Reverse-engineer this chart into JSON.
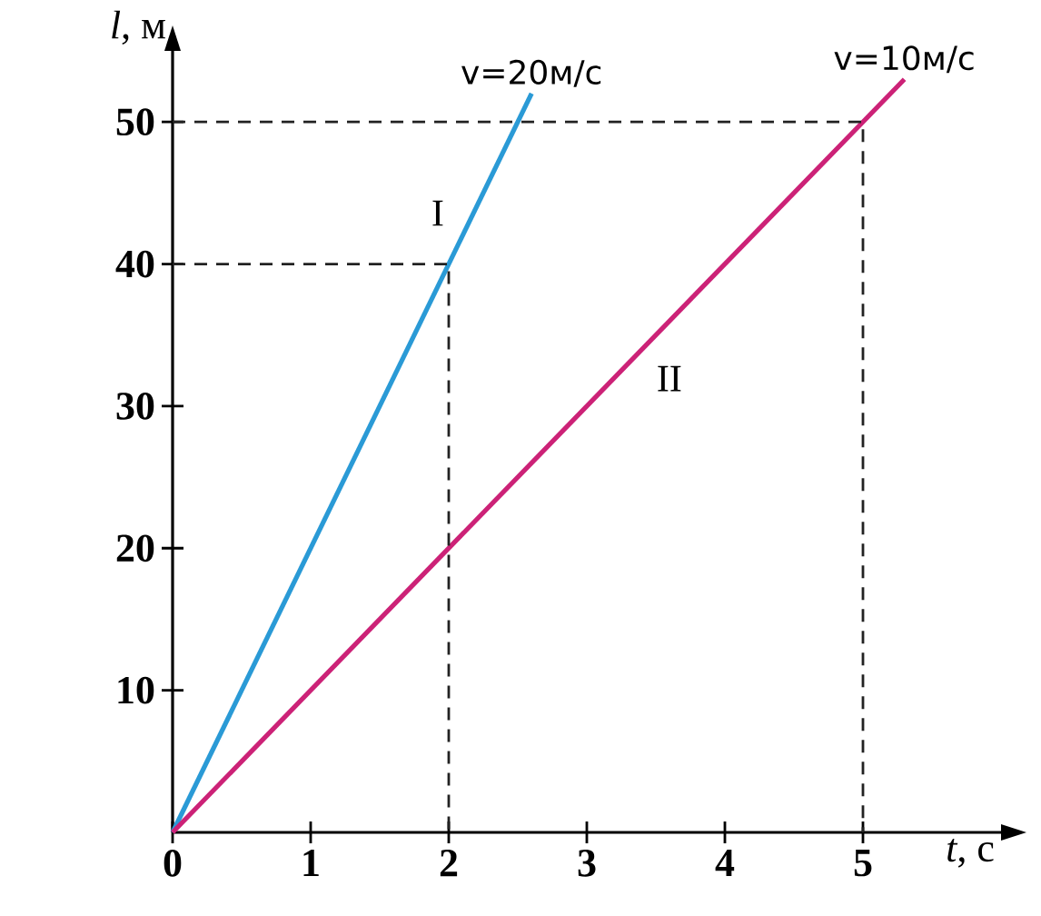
{
  "chart_data": {
    "type": "line",
    "xlabel": "*t*, с",
    "ylabel": "*l*, м",
    "xlim": [
      0,
      6
    ],
    "ylim": [
      0,
      55
    ],
    "xticks": [
      0,
      1,
      2,
      3,
      4,
      5
    ],
    "yticks": [
      10,
      20,
      30,
      40,
      50
    ],
    "series": [
      {
        "name": "I",
        "color": "#2a9ad6",
        "x": [
          0,
          2.6
        ],
        "values": [
          0,
          52
        ],
        "line_style": "solid"
      },
      {
        "name": "II",
        "color": "#cc2277",
        "x": [
          0,
          5.3
        ],
        "values": [
          0,
          53
        ],
        "line_style": "solid"
      },
      {
        "color": "#222222",
        "x": [
          0,
          2,
          2
        ],
        "values": [
          40,
          40,
          0
        ],
        "line_style": "dashed"
      },
      {
        "color": "#222222",
        "x": [
          0,
          5,
          5
        ],
        "values": [
          50,
          50,
          0
        ],
        "line_style": "dashed"
      }
    ],
    "annotations": [
      "v=20м/с",
      "v=10м/с"
    ]
  }
}
